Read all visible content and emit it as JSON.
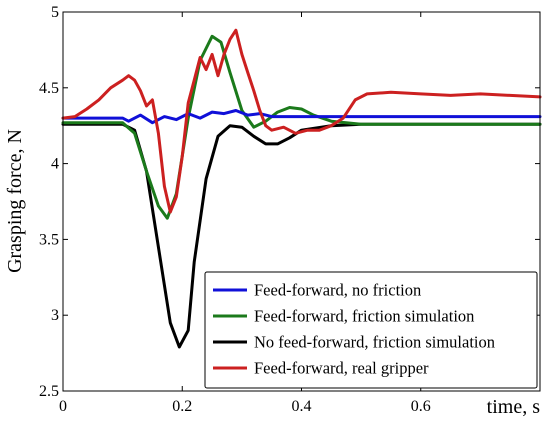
{
  "chart_data": {
    "type": "line",
    "title": "",
    "xlabel": "time, s",
    "ylabel": "Grasping force, N",
    "xlim": [
      0,
      0.8
    ],
    "ylim": [
      2.5,
      5
    ],
    "grid": false,
    "legend_position": "bottom-right",
    "x_ticks": [
      "0",
      "0.2",
      "0.4",
      "0.6"
    ],
    "x_tick_values": [
      0,
      0.2,
      0.4,
      0.6
    ],
    "y_ticks": [
      "2.5",
      "3",
      "3.5",
      "4",
      "4.5",
      "5"
    ],
    "y_tick_values": [
      2.5,
      3,
      3.5,
      4,
      4.5,
      5
    ],
    "series": [
      {
        "name": "Feed-forward, no friction",
        "color": "#1010d8",
        "x": [
          0,
          0.1,
          0.11,
          0.13,
          0.15,
          0.17,
          0.19,
          0.21,
          0.23,
          0.25,
          0.27,
          0.29,
          0.31,
          0.33,
          0.35,
          0.4,
          0.5,
          0.6,
          0.7,
          0.8
        ],
        "y": [
          4.3,
          4.3,
          4.28,
          4.32,
          4.27,
          4.31,
          4.29,
          4.33,
          4.3,
          4.34,
          4.33,
          4.35,
          4.32,
          4.33,
          4.31,
          4.31,
          4.31,
          4.31,
          4.31,
          4.31
        ]
      },
      {
        "name": "Feed-forward, friction simulation",
        "color": "#1b7a1b",
        "x": [
          0,
          0.1,
          0.12,
          0.14,
          0.16,
          0.175,
          0.19,
          0.21,
          0.23,
          0.25,
          0.265,
          0.28,
          0.3,
          0.32,
          0.34,
          0.36,
          0.38,
          0.4,
          0.42,
          0.45,
          0.5,
          0.6,
          0.8
        ],
        "y": [
          4.27,
          4.27,
          4.2,
          3.95,
          3.72,
          3.64,
          3.8,
          4.3,
          4.68,
          4.84,
          4.8,
          4.6,
          4.35,
          4.24,
          4.28,
          4.34,
          4.37,
          4.36,
          4.32,
          4.28,
          4.26,
          4.26,
          4.26
        ]
      },
      {
        "name": "No feed-forward, friction simulation",
        "color": "#000000",
        "x": [
          0,
          0.1,
          0.12,
          0.14,
          0.16,
          0.18,
          0.195,
          0.21,
          0.22,
          0.24,
          0.26,
          0.28,
          0.3,
          0.32,
          0.34,
          0.36,
          0.38,
          0.4,
          0.45,
          0.5,
          0.6,
          0.8
        ],
        "y": [
          4.26,
          4.26,
          4.22,
          3.95,
          3.45,
          2.95,
          2.79,
          2.9,
          3.35,
          3.9,
          4.18,
          4.25,
          4.24,
          4.18,
          4.13,
          4.13,
          4.17,
          4.22,
          4.25,
          4.26,
          4.26,
          4.26
        ]
      },
      {
        "name": "Feed-forward, real gripper",
        "color": "#cc2020",
        "x": [
          0,
          0.02,
          0.04,
          0.06,
          0.08,
          0.1,
          0.11,
          0.12,
          0.13,
          0.14,
          0.15,
          0.16,
          0.17,
          0.18,
          0.19,
          0.2,
          0.21,
          0.22,
          0.23,
          0.24,
          0.25,
          0.26,
          0.27,
          0.28,
          0.29,
          0.3,
          0.31,
          0.32,
          0.33,
          0.34,
          0.35,
          0.37,
          0.39,
          0.41,
          0.43,
          0.45,
          0.47,
          0.49,
          0.51,
          0.55,
          0.6,
          0.65,
          0.7,
          0.75,
          0.8
        ],
        "y": [
          4.3,
          4.31,
          4.36,
          4.42,
          4.5,
          4.55,
          4.58,
          4.55,
          4.48,
          4.38,
          4.42,
          4.2,
          3.85,
          3.68,
          3.78,
          4.05,
          4.4,
          4.55,
          4.7,
          4.62,
          4.72,
          4.58,
          4.72,
          4.82,
          4.88,
          4.72,
          4.6,
          4.48,
          4.35,
          4.25,
          4.22,
          4.24,
          4.2,
          4.22,
          4.22,
          4.25,
          4.3,
          4.42,
          4.46,
          4.47,
          4.46,
          4.45,
          4.46,
          4.45,
          4.44
        ]
      }
    ]
  }
}
